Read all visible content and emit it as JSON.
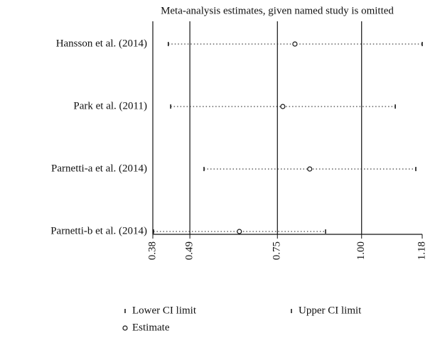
{
  "chart_data": {
    "type": "forest",
    "title": "Meta-analysis estimates, given named study is omitted",
    "categories": [
      "Hansson et al. (2014)",
      "Park et al. (2011)",
      "Parnetti-a et al. (2014)",
      "Parnetti-b et al. (2014)"
    ],
    "series": [
      {
        "name": "Lower CI limit",
        "values": [
          0.426,
          0.433,
          0.532,
          0.382
        ]
      },
      {
        "name": "Upper CI limit",
        "values": [
          1.18,
          1.1,
          1.161,
          0.893
        ]
      },
      {
        "name": "Estimate",
        "values": [
          0.802,
          0.766,
          0.846,
          0.637
        ]
      }
    ],
    "reference_lines": [
      0.49,
      0.75,
      1.0
    ],
    "xlim": [
      0.38,
      1.18
    ],
    "xticks": [
      0.38,
      0.49,
      0.75,
      {
        "value": 1.0,
        "label": "1.00"
      },
      1.18
    ]
  }
}
